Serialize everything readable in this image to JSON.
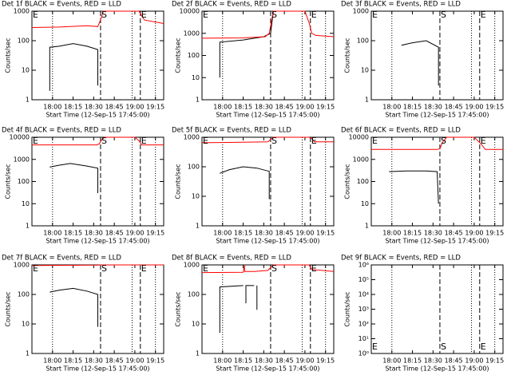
{
  "chart_data": [
    {
      "type": "line",
      "title": "Det 1f BLACK = Events, RED = LLD",
      "x_label": "Start Time (12-Sep-15 17:45:00)",
      "y_label": "Counts/sec",
      "log_y": true,
      "xlim": [
        0,
        96
      ],
      "xticks": [
        {
          "value": 15,
          "label": "18:00"
        },
        {
          "value": 30,
          "label": "18:15"
        },
        {
          "value": 45,
          "label": "18:30"
        },
        {
          "value": 60,
          "label": "18:45"
        },
        {
          "value": 75,
          "label": "19:00"
        },
        {
          "value": 90,
          "label": "19:15"
        }
      ],
      "ylim": [
        1,
        1000
      ],
      "yticks": [
        1,
        10,
        100,
        1000
      ],
      "dotted_lines": [
        15,
        73,
        90
      ],
      "dashed_lines": [
        50,
        79
      ],
      "annotations": [
        {
          "text": "E",
          "x": 0
        },
        {
          "text": "S",
          "x": 50
        },
        {
          "text": "E",
          "x": 79
        }
      ],
      "annotation_position": "top",
      "series": [
        {
          "name": "Events",
          "color": "#000000",
          "x": [
            13,
            13,
            20,
            30,
            40,
            48,
            48
          ],
          "values": [
            2,
            60,
            65,
            80,
            65,
            50,
            3
          ]
        },
        {
          "name": "LLD",
          "color": "#ff0000",
          "x": [
            0,
            20,
            40,
            48,
            50,
            52,
            78,
            80,
            82,
            96
          ],
          "values": [
            280,
            290,
            320,
            300,
            500,
            1000,
            1000,
            700,
            500,
            380
          ]
        }
      ]
    },
    {
      "type": "line",
      "title": "Det 2f BLACK = Events, RED = LLD",
      "x_label": "Start Time (12-Sep-15 17:45:00)",
      "y_label": "Counts/sec",
      "log_y": true,
      "xlim": [
        0,
        96
      ],
      "xticks": [
        {
          "value": 15,
          "label": "18:00"
        },
        {
          "value": 30,
          "label": "18:15"
        },
        {
          "value": 45,
          "label": "18:30"
        },
        {
          "value": 60,
          "label": "18:45"
        },
        {
          "value": 75,
          "label": "19:00"
        },
        {
          "value": 90,
          "label": "19:15"
        }
      ],
      "ylim": [
        1,
        10000
      ],
      "yticks": [
        1,
        10,
        100,
        1000,
        10000
      ],
      "dotted_lines": [
        15,
        73,
        90
      ],
      "dashed_lines": [
        50,
        79
      ],
      "annotations": [
        {
          "text": "E",
          "x": 0
        },
        {
          "text": "S",
          "x": 50
        },
        {
          "text": "E",
          "x": 79
        }
      ],
      "annotation_position": "top",
      "series": [
        {
          "name": "Events",
          "color": "#000000",
          "x": [
            13,
            13,
            30,
            45,
            50,
            52
          ],
          "values": [
            10,
            400,
            500,
            700,
            1000,
            10000
          ]
        },
        {
          "name": "LLD",
          "color": "#ff0000",
          "x": [
            0,
            30,
            46,
            49,
            52,
            75,
            78,
            80,
            83,
            96
          ],
          "values": [
            600,
            620,
            700,
            1000,
            10000,
            10000,
            3000,
            1000,
            800,
            700
          ]
        }
      ]
    },
    {
      "type": "line",
      "title": "Det 3f BLACK = Events, RED = LLD",
      "x_label": "Start Time (12-Sep-15 17:45:00)",
      "y_label": "Counts/sec",
      "log_y": true,
      "xlim": [
        0,
        96
      ],
      "xticks": [
        {
          "value": 15,
          "label": "18:00"
        },
        {
          "value": 30,
          "label": "18:15"
        },
        {
          "value": 45,
          "label": "18:30"
        },
        {
          "value": 60,
          "label": "18:45"
        },
        {
          "value": 75,
          "label": "19:00"
        },
        {
          "value": 90,
          "label": "19:15"
        }
      ],
      "ylim": [
        1,
        1000
      ],
      "yticks": [
        1,
        10,
        100,
        1000
      ],
      "dotted_lines": [
        15,
        73,
        90
      ],
      "dashed_lines": [
        50,
        79
      ],
      "annotations": [
        {
          "text": "E",
          "x": 0
        },
        {
          "text": "S",
          "x": 50
        },
        {
          "text": "E",
          "x": 79
        }
      ],
      "annotation_position": "top",
      "series": [
        {
          "name": "Events",
          "color": "#000000",
          "x": [
            22,
            30,
            40,
            49,
            49
          ],
          "values": [
            70,
            85,
            100,
            60,
            3
          ]
        }
      ]
    },
    {
      "type": "line",
      "title": "Det 4f BLACK = Events, RED = LLD",
      "x_label": "Start Time (12-Sep-15 17:45:00)",
      "y_label": "Counts/sec",
      "log_y": true,
      "xlim": [
        0,
        96
      ],
      "xticks": [
        {
          "value": 15,
          "label": "18:00"
        },
        {
          "value": 30,
          "label": "18:15"
        },
        {
          "value": 45,
          "label": "18:30"
        },
        {
          "value": 60,
          "label": "18:45"
        },
        {
          "value": 75,
          "label": "19:00"
        },
        {
          "value": 90,
          "label": "19:15"
        }
      ],
      "ylim": [
        1,
        10000
      ],
      "yticks": [
        1,
        10,
        100,
        1000,
        10000
      ],
      "dotted_lines": [
        15,
        73,
        90
      ],
      "dashed_lines": [
        50,
        79
      ],
      "annotations": [
        {
          "text": "E",
          "x": 0
        },
        {
          "text": "S",
          "x": 50
        },
        {
          "text": "E",
          "x": 79
        }
      ],
      "annotation_position": "top",
      "series": [
        {
          "name": "Events",
          "color": "#000000",
          "x": [
            13,
            20,
            28,
            40,
            48,
            48
          ],
          "values": [
            450,
            550,
            650,
            500,
            400,
            30
          ]
        },
        {
          "name": "LLD",
          "color": "#ff0000",
          "x": [
            0,
            47,
            49,
            51,
            53,
            75,
            78,
            80,
            96
          ],
          "values": [
            4500,
            4500,
            5000,
            8000,
            10000,
            10000,
            7000,
            4500,
            4500
          ]
        }
      ]
    },
    {
      "type": "line",
      "title": "Det 5f BLACK = Events, RED = LLD",
      "x_label": "Start Time (12-Sep-15 17:45:00)",
      "y_label": "Counts/sec",
      "log_y": true,
      "xlim": [
        0,
        96
      ],
      "xticks": [
        {
          "value": 15,
          "label": "18:00"
        },
        {
          "value": 30,
          "label": "18:15"
        },
        {
          "value": 45,
          "label": "18:30"
        },
        {
          "value": 60,
          "label": "18:45"
        },
        {
          "value": 75,
          "label": "19:00"
        },
        {
          "value": 90,
          "label": "19:15"
        }
      ],
      "ylim": [
        1,
        1000
      ],
      "yticks": [
        1,
        10,
        100,
        1000
      ],
      "dotted_lines": [
        15,
        73,
        90
      ],
      "dashed_lines": [
        50,
        79
      ],
      "annotations": [
        {
          "text": "E",
          "x": 0
        },
        {
          "text": "S",
          "x": 50
        },
        {
          "text": "E",
          "x": 79
        }
      ],
      "annotation_position": "top",
      "series": [
        {
          "name": "Events",
          "color": "#000000",
          "x": [
            13,
            20,
            30,
            40,
            49,
            49
          ],
          "values": [
            60,
            80,
            100,
            90,
            70,
            8
          ]
        },
        {
          "name": "LLD",
          "color": "#ff0000",
          "x": [
            0,
            30,
            48,
            52,
            78,
            80,
            82,
            96
          ],
          "values": [
            650,
            680,
            700,
            1000,
            1000,
            900,
            700,
            700
          ]
        }
      ]
    },
    {
      "type": "line",
      "title": "Det 6f BLACK = Events, RED = LLD",
      "x_label": "Start Time (12-Sep-15 17:45:00)",
      "y_label": "Counts/sec",
      "log_y": true,
      "xlim": [
        0,
        96
      ],
      "xticks": [
        {
          "value": 15,
          "label": "18:00"
        },
        {
          "value": 30,
          "label": "18:15"
        },
        {
          "value": 45,
          "label": "18:30"
        },
        {
          "value": 60,
          "label": "18:45"
        },
        {
          "value": 75,
          "label": "19:00"
        },
        {
          "value": 90,
          "label": "19:15"
        }
      ],
      "ylim": [
        1,
        10000
      ],
      "yticks": [
        1,
        10,
        100,
        1000,
        10000
      ],
      "dotted_lines": [
        15,
        73,
        90
      ],
      "dashed_lines": [
        50,
        79
      ],
      "annotations": [
        {
          "text": "E",
          "x": 0
        },
        {
          "text": "S",
          "x": 50
        },
        {
          "text": "E",
          "x": 79
        }
      ],
      "annotation_position": "top",
      "series": [
        {
          "name": "Events",
          "color": "#000000",
          "x": [
            13,
            25,
            40,
            48,
            49
          ],
          "values": [
            280,
            300,
            300,
            280,
            10
          ]
        },
        {
          "name": "LLD",
          "color": "#ff0000",
          "x": [
            0,
            48,
            50,
            52,
            55,
            75,
            80,
            83,
            96
          ],
          "values": [
            2800,
            2800,
            3000,
            6000,
            10000,
            10000,
            5000,
            2800,
            2800
          ]
        }
      ]
    },
    {
      "type": "line",
      "title": "Det 7f BLACK = Events, RED = LLD",
      "x_label": "Start Time (12-Sep-15 17:45:00)",
      "y_label": "Counts/sec",
      "log_y": true,
      "xlim": [
        0,
        96
      ],
      "xticks": [
        {
          "value": 15,
          "label": "18:00"
        },
        {
          "value": 30,
          "label": "18:15"
        },
        {
          "value": 45,
          "label": "18:30"
        },
        {
          "value": 60,
          "label": "18:45"
        },
        {
          "value": 75,
          "label": "19:00"
        },
        {
          "value": 90,
          "label": "19:15"
        }
      ],
      "ylim": [
        1,
        1000
      ],
      "yticks": [
        1,
        10,
        100,
        1000
      ],
      "dotted_lines": [
        15,
        73,
        90
      ],
      "dashed_lines": [
        50,
        79
      ],
      "annotations": [
        {
          "text": "E",
          "x": 0
        },
        {
          "text": "S",
          "x": 50
        },
        {
          "text": "E",
          "x": 79
        }
      ],
      "annotation_position": "top",
      "series": [
        {
          "name": "Events",
          "color": "#000000",
          "x": [
            13,
            20,
            30,
            40,
            48,
            48
          ],
          "values": [
            120,
            140,
            160,
            130,
            100,
            8
          ]
        },
        {
          "name": "LLD",
          "color": "#ff0000",
          "x": [
            0,
            48,
            52,
            78,
            96
          ],
          "values": [
            950,
            980,
            1000,
            1000,
            1000
          ]
        }
      ]
    },
    {
      "type": "line",
      "title": "Det 8f BLACK = Events, RED = LLD",
      "x_label": "Start Time (12-Sep-15 17:45:00)",
      "y_label": "Counts/sec",
      "log_y": true,
      "xlim": [
        0,
        96
      ],
      "xticks": [
        {
          "value": 15,
          "label": "18:00"
        },
        {
          "value": 30,
          "label": "18:15"
        },
        {
          "value": 45,
          "label": "18:30"
        },
        {
          "value": 60,
          "label": "18:45"
        },
        {
          "value": 75,
          "label": "19:00"
        },
        {
          "value": 90,
          "label": "19:15"
        }
      ],
      "ylim": [
        1,
        1000
      ],
      "yticks": [
        1,
        10,
        100,
        1000
      ],
      "dotted_lines": [
        15,
        73,
        90
      ],
      "dashed_lines": [
        50,
        79
      ],
      "annotations": [
        {
          "text": "E",
          "x": 0
        },
        {
          "text": "S",
          "x": 50
        },
        {
          "text": "E",
          "x": 79
        }
      ],
      "annotation_position": "top",
      "series": [
        {
          "name": "Events",
          "color": "#000000",
          "x": [
            13,
            13,
            30,
            null,
            32,
            32,
            38,
            null,
            40,
            40
          ],
          "values": [
            5,
            180,
            200,
            null,
            50,
            200,
            200,
            null,
            30,
            200
          ]
        },
        {
          "name": "LLD",
          "color": "#ff0000",
          "x": [
            0,
            30,
            31,
            31,
            38,
            48,
            52,
            78,
            80,
            96
          ],
          "values": [
            550,
            560,
            1000,
            600,
            600,
            650,
            1000,
            1000,
            700,
            600
          ]
        }
      ]
    },
    {
      "type": "line",
      "title": "Det 9f BLACK = Events, RED = LLD",
      "x_label": "Start Time (12-Sep-15 17:45:00)",
      "y_label": "Counts/sec",
      "log_y": true,
      "xlim": [
        0,
        96
      ],
      "xticks": [
        {
          "value": 15,
          "label": "18:00"
        },
        {
          "value": 30,
          "label": "18:15"
        },
        {
          "value": 45,
          "label": "18:30"
        },
        {
          "value": 60,
          "label": "18:45"
        },
        {
          "value": 75,
          "label": "19:00"
        },
        {
          "value": 90,
          "label": "19:15"
        }
      ],
      "ylim": [
        1,
        1000000
      ],
      "yticks": [
        {
          "value": 1,
          "label": "10⁰"
        },
        {
          "value": 10,
          "label": "10¹"
        },
        {
          "value": 100,
          "label": "10²"
        },
        {
          "value": 1000,
          "label": "10³"
        },
        {
          "value": 10000,
          "label": "10⁴"
        },
        {
          "value": 100000,
          "label": "10⁵"
        },
        {
          "value": 1000000,
          "label": "10⁶"
        }
      ],
      "dotted_lines": [
        15,
        73,
        90
      ],
      "dashed_lines": [
        50,
        79
      ],
      "annotations": [
        {
          "text": "E",
          "x": 0
        },
        {
          "text": "S",
          "x": 50
        },
        {
          "text": "E",
          "x": 79
        }
      ],
      "annotation_position": "bottom",
      "series": []
    }
  ]
}
